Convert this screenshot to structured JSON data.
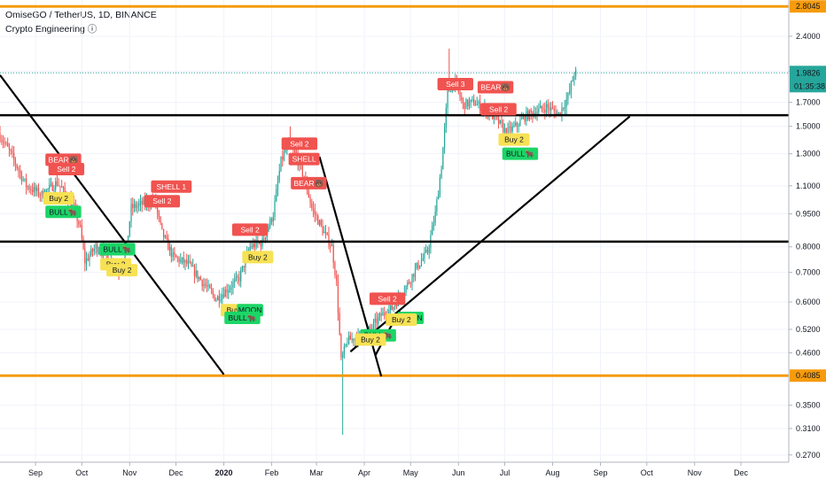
{
  "header": {
    "title": "OmiseGO / TetherUS, 1D, BINANCE",
    "indicator": "Crypto Engineering ⓘ"
  },
  "chart_data": {
    "type": "candlestick",
    "symbol": "OmiseGO / TetherUS",
    "interval": "1D",
    "exchange": "BINANCE",
    "y_scale": "log",
    "ylim": [
      0.26,
      2.9
    ],
    "y_ticks": [
      "2.4000",
      "2.0000",
      "1.7000",
      "1.5000",
      "1.3000",
      "1.1000",
      "0.9500",
      "0.8000",
      "0.7000",
      "0.6000",
      "0.5200",
      "0.4600",
      "0.3500",
      "0.3100",
      "0.2700"
    ],
    "x_ticks": [
      {
        "label": "Sep",
        "day": 0
      },
      {
        "label": "Oct",
        "day": 30
      },
      {
        "label": "Nov",
        "day": 61
      },
      {
        "label": "Dec",
        "day": 91
      },
      {
        "label": "2020",
        "day": 122
      },
      {
        "label": "Feb",
        "day": 153
      },
      {
        "label": "Mar",
        "day": 182
      },
      {
        "label": "Apr",
        "day": 213
      },
      {
        "label": "May",
        "day": 243
      },
      {
        "label": "Jun",
        "day": 274
      },
      {
        "label": "Jul",
        "day": 304
      },
      {
        "label": "Aug",
        "day": 335
      },
      {
        "label": "Sep",
        "day": 366
      },
      {
        "label": "Oct",
        "day": 396
      },
      {
        "label": "Nov",
        "day": 427
      },
      {
        "label": "Dec",
        "day": 457
      }
    ],
    "x_range_days": [
      -23,
      488
    ],
    "price_anchors": [
      {
        "day": -23,
        "value": 1.45
      },
      {
        "day": -15,
        "value": 1.3
      },
      {
        "day": -5,
        "value": 1.1
      },
      {
        "day": 5,
        "value": 1.05
      },
      {
        "day": 15,
        "value": 1.12
      },
      {
        "day": 25,
        "value": 1.0
      },
      {
        "day": 30,
        "value": 0.88
      },
      {
        "day": 33,
        "value": 0.74
      },
      {
        "day": 40,
        "value": 0.8
      },
      {
        "day": 48,
        "value": 0.76
      },
      {
        "day": 55,
        "value": 0.71
      },
      {
        "day": 60,
        "value": 0.8
      },
      {
        "day": 63,
        "value": 0.98
      },
      {
        "day": 70,
        "value": 1.0
      },
      {
        "day": 78,
        "value": 1.02
      },
      {
        "day": 83,
        "value": 0.86
      },
      {
        "day": 90,
        "value": 0.76
      },
      {
        "day": 100,
        "value": 0.73
      },
      {
        "day": 110,
        "value": 0.66
      },
      {
        "day": 118,
        "value": 0.61
      },
      {
        "day": 125,
        "value": 0.64
      },
      {
        "day": 133,
        "value": 0.68
      },
      {
        "day": 140,
        "value": 0.8
      },
      {
        "day": 148,
        "value": 0.82
      },
      {
        "day": 155,
        "value": 0.95
      },
      {
        "day": 160,
        "value": 1.25
      },
      {
        "day": 165,
        "value": 1.37
      },
      {
        "day": 170,
        "value": 1.28
      },
      {
        "day": 175,
        "value": 1.15
      },
      {
        "day": 180,
        "value": 0.98
      },
      {
        "day": 188,
        "value": 0.86
      },
      {
        "day": 193,
        "value": 0.8
      },
      {
        "day": 196,
        "value": 0.66
      },
      {
        "day": 199,
        "value": 0.44
      },
      {
        "day": 203,
        "value": 0.49
      },
      {
        "day": 210,
        "value": 0.5
      },
      {
        "day": 218,
        "value": 0.52
      },
      {
        "day": 225,
        "value": 0.56
      },
      {
        "day": 232,
        "value": 0.58
      },
      {
        "day": 240,
        "value": 0.64
      },
      {
        "day": 248,
        "value": 0.72
      },
      {
        "day": 255,
        "value": 0.78
      },
      {
        "day": 260,
        "value": 0.95
      },
      {
        "day": 264,
        "value": 1.22
      },
      {
        "day": 268,
        "value": 1.78
      },
      {
        "day": 272,
        "value": 1.9
      },
      {
        "day": 278,
        "value": 1.68
      },
      {
        "day": 285,
        "value": 1.7
      },
      {
        "day": 292,
        "value": 1.64
      },
      {
        "day": 300,
        "value": 1.55
      },
      {
        "day": 306,
        "value": 1.45
      },
      {
        "day": 312,
        "value": 1.5
      },
      {
        "day": 318,
        "value": 1.58
      },
      {
        "day": 325,
        "value": 1.62
      },
      {
        "day": 332,
        "value": 1.66
      },
      {
        "day": 340,
        "value": 1.6
      },
      {
        "day": 346,
        "value": 1.75
      },
      {
        "day": 350,
        "value": 1.98
      }
    ],
    "horizontal_levels": [
      {
        "value": 2.8045,
        "label": "2.8045",
        "style": "orange"
      },
      {
        "value": 1.59,
        "label": "",
        "style": "black"
      },
      {
        "value": 0.822,
        "label": "",
        "style": "black"
      },
      {
        "value": 0.4085,
        "label": "0.4085",
        "style": "orange"
      }
    ],
    "trendlines": [
      {
        "from": {
          "day": -23,
          "value": 1.96
        },
        "to": {
          "day": 122,
          "value": 0.411
        }
      },
      {
        "from": {
          "day": 184,
          "value": 1.28
        },
        "to": {
          "day": 224,
          "value": 0.407
        }
      },
      {
        "from": {
          "day": 204,
          "value": 0.463
        },
        "to": {
          "day": 385,
          "value": 1.58
        }
      },
      {
        "from": {
          "day": 220,
          "value": 0.453
        },
        "to": {
          "day": 236,
          "value": 0.575
        }
      }
    ],
    "last_price": {
      "value": 1.9826,
      "label": "1.9826",
      "countdown": "01:35:38"
    },
    "signals": [
      {
        "text": "BEAR🐻",
        "day": 18,
        "value": 1.26,
        "kind": "sell"
      },
      {
        "text": "Sell 2",
        "day": 20,
        "value": 1.2,
        "kind": "sell"
      },
      {
        "text": "Buy 2",
        "day": 15,
        "value": 1.03,
        "kind": "buy"
      },
      {
        "text": "BULL🐂",
        "day": 18,
        "value": 0.96,
        "kind": "bull"
      },
      {
        "text": "BULL🐂",
        "day": 53,
        "value": 0.79,
        "kind": "bull"
      },
      {
        "text": "Buy 2",
        "day": 52,
        "value": 0.73,
        "kind": "buy"
      },
      {
        "text": "Buy 2",
        "day": 56,
        "value": 0.708,
        "kind": "buy"
      },
      {
        "text": "SHELL 1",
        "day": 88,
        "value": 1.095,
        "kind": "sell"
      },
      {
        "text": "Sell 2",
        "day": 82,
        "value": 1.015,
        "kind": "sell"
      },
      {
        "text": "Sell 2",
        "day": 139,
        "value": 0.875,
        "kind": "sell"
      },
      {
        "text": "Buy 2",
        "day": 144,
        "value": 0.758,
        "kind": "buy"
      },
      {
        "text": "Buy 2",
        "day": 130,
        "value": 0.575,
        "kind": "buy"
      },
      {
        "text": "MOON",
        "day": 139,
        "value": 0.575,
        "kind": "bull"
      },
      {
        "text": "BULL🐂",
        "day": 134,
        "value": 0.552,
        "kind": "bull"
      },
      {
        "text": "Sell 2",
        "day": 171,
        "value": 1.37,
        "kind": "sell"
      },
      {
        "text": "SHELL",
        "day": 174,
        "value": 1.265,
        "kind": "sell"
      },
      {
        "text": "BEAR🐻",
        "day": 177,
        "value": 1.115,
        "kind": "sell"
      },
      {
        "text": "Sell 2",
        "day": 228,
        "value": 0.61,
        "kind": "sell"
      },
      {
        "text": "MOON",
        "day": 243,
        "value": 0.552,
        "kind": "bull"
      },
      {
        "text": "Buy 2",
        "day": 237,
        "value": 0.547,
        "kind": "buy"
      },
      {
        "text": "BULL🐂",
        "day": 222,
        "value": 0.504,
        "kind": "bull"
      },
      {
        "text": "Buy 2",
        "day": 217,
        "value": 0.493,
        "kind": "buy"
      },
      {
        "text": "Sell 3",
        "day": 272,
        "value": 1.87,
        "kind": "sell"
      },
      {
        "text": "BEAR🐻",
        "day": 298,
        "value": 1.84,
        "kind": "sell"
      },
      {
        "text": "Sell 2",
        "day": 300,
        "value": 1.64,
        "kind": "sell"
      },
      {
        "text": "Buy 2",
        "day": 310,
        "value": 1.4,
        "kind": "buy"
      },
      {
        "text": "BULL🐂",
        "day": 314,
        "value": 1.3,
        "kind": "bull"
      }
    ]
  },
  "colors": {
    "up": "#26a69a",
    "down": "#ef5350",
    "sell_bg": "#f05350",
    "buy_bg": "#f7e154",
    "bull_bg": "#1bd567",
    "orange": "#f59b0c",
    "black_line": "#000000",
    "grid": "#f0f3fa",
    "last_price_bg": "#26a69a"
  }
}
